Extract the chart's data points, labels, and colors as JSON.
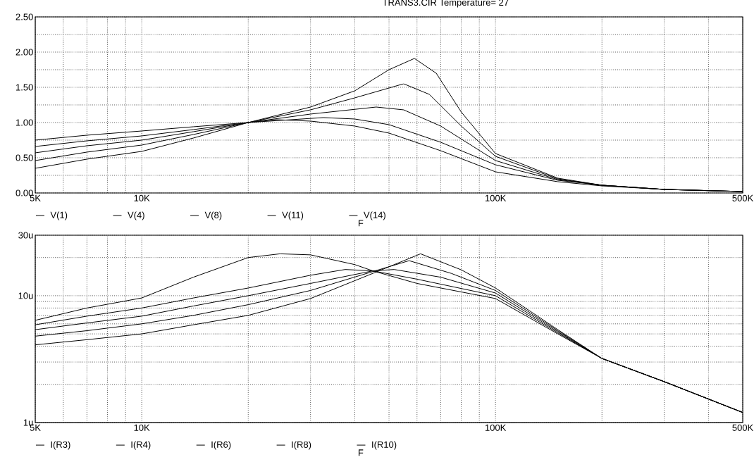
{
  "chart_data": [
    {
      "type": "line",
      "title": "TRANS3.CIR Temperature= 27",
      "xlabel": "F",
      "log": "x",
      "grid": true,
      "legend": "bottom",
      "xlim": [
        5000,
        500000
      ],
      "ylim": [
        0,
        2.5
      ],
      "xticks": [
        {
          "value": 5000,
          "label": "5K"
        },
        {
          "value": 6000,
          "label": null
        },
        {
          "value": 7000,
          "label": null
        },
        {
          "value": 8000,
          "label": null
        },
        {
          "value": 9000,
          "label": null
        },
        {
          "value": 10000,
          "label": "10K"
        },
        {
          "value": 20000,
          "label": null
        },
        {
          "value": 30000,
          "label": null
        },
        {
          "value": 40000,
          "label": null
        },
        {
          "value": 50000,
          "label": null
        },
        {
          "value": 60000,
          "label": null
        },
        {
          "value": 70000,
          "label": null
        },
        {
          "value": 80000,
          "label": null
        },
        {
          "value": 90000,
          "label": null
        },
        {
          "value": 100000,
          "label": "100K"
        },
        {
          "value": 200000,
          "label": null
        },
        {
          "value": 300000,
          "label": null
        },
        {
          "value": 400000,
          "label": null
        },
        {
          "value": 500000,
          "label": "500K"
        }
      ],
      "yticks": [
        {
          "value": 0,
          "label": "0.00"
        },
        {
          "value": 0.25,
          "label": null
        },
        {
          "value": 0.5,
          "label": "0.50"
        },
        {
          "value": 0.75,
          "label": null
        },
        {
          "value": 1,
          "label": "1.00"
        },
        {
          "value": 1.25,
          "label": null
        },
        {
          "value": 1.5,
          "label": "1.50"
        },
        {
          "value": 1.75,
          "label": null
        },
        {
          "value": 2,
          "label": "2.00"
        },
        {
          "value": 2.25,
          "label": null
        },
        {
          "value": 2.5,
          "label": "2.50"
        }
      ],
      "series": [
        {
          "name": "V(1)",
          "color": "#000000",
          "x": [
            5000,
            7000,
            10000,
            14000,
            20000,
            24000,
            30000,
            40000,
            50000,
            70000,
            100000,
            150000,
            200000,
            300000,
            500000
          ],
          "values": [
            0.75,
            0.82,
            0.88,
            0.94,
            1.0,
            1.04,
            1.02,
            0.95,
            0.85,
            0.6,
            0.3,
            0.16,
            0.1,
            0.05,
            0.02
          ]
        },
        {
          "name": "V(4)",
          "color": "#000000",
          "x": [
            5000,
            7000,
            10000,
            14000,
            20000,
            32600,
            40000,
            50000,
            70000,
            100000,
            150000,
            200000,
            300000,
            500000
          ],
          "values": [
            0.66,
            0.74,
            0.81,
            0.9,
            1.0,
            1.07,
            1.05,
            0.97,
            0.72,
            0.4,
            0.18,
            0.11,
            0.05,
            0.02
          ]
        },
        {
          "name": "V(8)",
          "color": "#000000",
          "x": [
            5000,
            7000,
            10000,
            14000,
            20000,
            30000,
            46000,
            55000,
            70000,
            100000,
            150000,
            200000,
            300000,
            500000
          ],
          "values": [
            0.57,
            0.67,
            0.75,
            0.87,
            1.0,
            1.12,
            1.22,
            1.18,
            0.95,
            0.46,
            0.19,
            0.11,
            0.05,
            0.02
          ]
        },
        {
          "name": "V(11)",
          "color": "#000000",
          "x": [
            5000,
            7000,
            10000,
            14000,
            20000,
            30000,
            40000,
            55000,
            65000,
            80000,
            100000,
            150000,
            200000,
            300000,
            500000
          ],
          "values": [
            0.46,
            0.58,
            0.68,
            0.83,
            1.0,
            1.18,
            1.35,
            1.55,
            1.4,
            0.95,
            0.52,
            0.2,
            0.11,
            0.05,
            0.02
          ]
        },
        {
          "name": "V(14)",
          "color": "#000000",
          "x": [
            5000,
            7000,
            10000,
            14000,
            20000,
            30000,
            40000,
            50000,
            59000,
            68000,
            80000,
            100000,
            150000,
            200000,
            300000,
            500000
          ],
          "values": [
            0.35,
            0.48,
            0.59,
            0.78,
            1.0,
            1.22,
            1.45,
            1.75,
            1.91,
            1.7,
            1.15,
            0.56,
            0.21,
            0.11,
            0.05,
            0.02
          ]
        }
      ]
    },
    {
      "type": "line",
      "xlabel": "F",
      "log": "xy",
      "grid": true,
      "legend": "bottom",
      "xlim": [
        5000,
        500000
      ],
      "ylim": [
        1,
        30
      ],
      "xticks": [
        {
          "value": 5000,
          "label": "5K"
        },
        {
          "value": 6000,
          "label": null
        },
        {
          "value": 7000,
          "label": null
        },
        {
          "value": 8000,
          "label": null
        },
        {
          "value": 9000,
          "label": null
        },
        {
          "value": 10000,
          "label": "10K"
        },
        {
          "value": 20000,
          "label": null
        },
        {
          "value": 30000,
          "label": null
        },
        {
          "value": 40000,
          "label": null
        },
        {
          "value": 50000,
          "label": null
        },
        {
          "value": 60000,
          "label": null
        },
        {
          "value": 70000,
          "label": null
        },
        {
          "value": 80000,
          "label": null
        },
        {
          "value": 90000,
          "label": null
        },
        {
          "value": 100000,
          "label": "100K"
        },
        {
          "value": 200000,
          "label": null
        },
        {
          "value": 300000,
          "label": null
        },
        {
          "value": 400000,
          "label": null
        },
        {
          "value": 500000,
          "label": "500K"
        }
      ],
      "yticks": [
        {
          "value": 1,
          "label": "1u"
        },
        {
          "value": 2,
          "label": null
        },
        {
          "value": 3,
          "label": null
        },
        {
          "value": 4,
          "label": null
        },
        {
          "value": 5,
          "label": null
        },
        {
          "value": 6,
          "label": null
        },
        {
          "value": 7,
          "label": null
        },
        {
          "value": 8,
          "label": null
        },
        {
          "value": 9,
          "label": null
        },
        {
          "value": 10,
          "label": "10u"
        },
        {
          "value": 20,
          "label": null
        },
        {
          "value": 30,
          "label": "30u"
        }
      ],
      "series": [
        {
          "name": "I(R3)",
          "color": "#000000",
          "x": [
            5000,
            7000,
            10000,
            14000,
            20000,
            24600,
            30000,
            40000,
            45000,
            60000,
            100000,
            150000,
            200000,
            300000,
            500000
          ],
          "values": [
            6.4,
            8,
            9.6,
            14,
            20,
            21.4,
            21,
            17.6,
            15.7,
            12.5,
            9.5,
            5,
            3.2,
            2.1,
            1.2
          ]
        },
        {
          "name": "I(R4)",
          "color": "#000000",
          "x": [
            5000,
            7000,
            10000,
            14000,
            20000,
            30000,
            37600,
            45000,
            60000,
            100000,
            150000,
            200000,
            300000,
            500000
          ],
          "values": [
            5.9,
            6.9,
            8,
            9.6,
            11.5,
            14.5,
            16.1,
            15.7,
            13.5,
            10,
            5.1,
            3.2,
            2.1,
            1.2
          ]
        },
        {
          "name": "I(R6)",
          "color": "#000000",
          "x": [
            5000,
            7000,
            10000,
            14000,
            20000,
            30000,
            45000,
            51700,
            70000,
            100000,
            150000,
            200000,
            300000,
            500000
          ],
          "values": [
            5.4,
            6.1,
            6.9,
            8.3,
            10,
            12.5,
            15.7,
            16.1,
            14,
            10.5,
            5.2,
            3.2,
            2.1,
            1.2
          ]
        },
        {
          "name": "I(R8)",
          "color": "#000000",
          "x": [
            5000,
            7000,
            10000,
            14000,
            20000,
            30000,
            45000,
            57000,
            75000,
            100000,
            150000,
            200000,
            300000,
            500000
          ],
          "values": [
            4.8,
            5.3,
            6,
            7,
            8.5,
            11,
            15.5,
            18.9,
            15,
            11,
            5.3,
            3.2,
            2.1,
            1.2
          ]
        },
        {
          "name": "I(R10)",
          "color": "#000000",
          "x": [
            5000,
            7000,
            10000,
            14000,
            20000,
            30000,
            45000,
            61400,
            80000,
            100000,
            150000,
            200000,
            300000,
            500000
          ],
          "values": [
            4.1,
            4.5,
            5,
            5.9,
            7,
            9.5,
            15,
            21.4,
            16,
            11.5,
            5.4,
            3.2,
            2.1,
            1.2
          ]
        }
      ]
    }
  ]
}
